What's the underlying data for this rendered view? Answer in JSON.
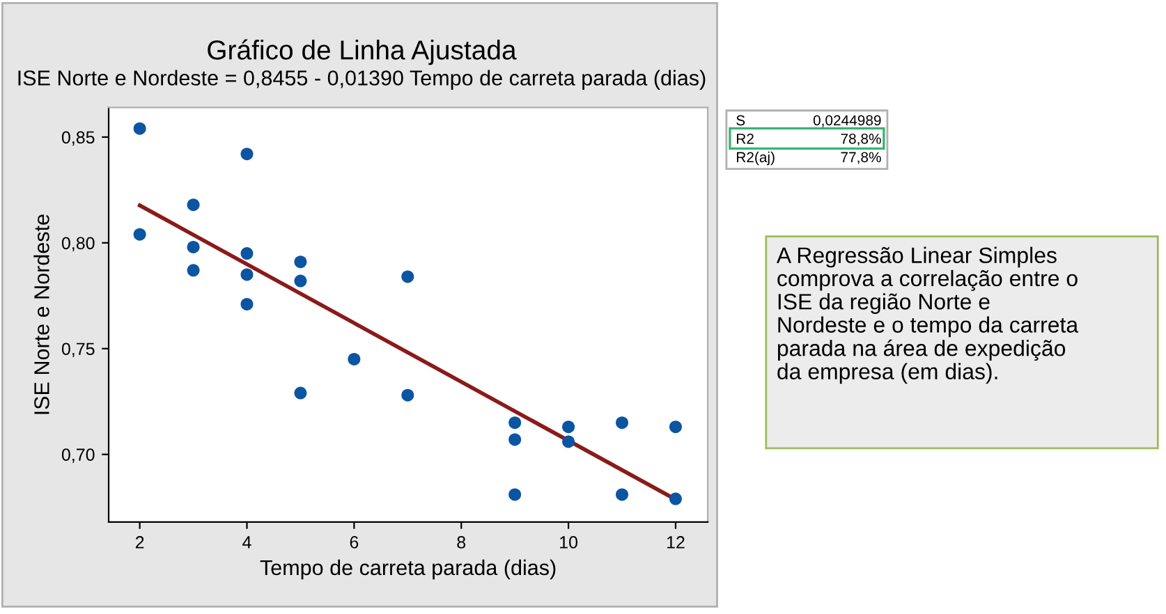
{
  "chart_data": {
    "type": "scatter",
    "title": "Gráfico de Linha Ajustada",
    "subtitle": "ISE Norte e Nordeste = 0,8455 - 0,01390 Tempo de carreta parada (dias)",
    "xlabel": "Tempo de carreta parada (dias)",
    "ylabel": "ISE Norte e Nordeste",
    "series": [
      {
        "color": "#0b55a3",
        "x": [
          2,
          2,
          3,
          3,
          3,
          4,
          4,
          4,
          4,
          5,
          5,
          5,
          6,
          7,
          7,
          9,
          9,
          9,
          10,
          10,
          11,
          11,
          12,
          12
        ],
        "values": [
          0.854,
          0.804,
          0.818,
          0.798,
          0.787,
          0.842,
          0.795,
          0.785,
          0.771,
          0.791,
          0.782,
          0.729,
          0.745,
          0.784,
          0.728,
          0.715,
          0.707,
          0.681,
          0.713,
          0.706,
          0.715,
          0.681,
          0.713,
          0.679
        ]
      },
      {
        "type": "line",
        "marker": "none",
        "color": "#8b1a1a",
        "x": [
          2,
          12
        ],
        "values": [
          0.8177,
          0.6787
        ]
      }
    ],
    "xlim": [
      1.42,
      12.6
    ],
    "ylim": [
      0.668,
      0.864
    ],
    "xticks": [
      2,
      4,
      6,
      8,
      10,
      12
    ],
    "yticks": [
      {
        "value": 0.7,
        "label": "0,70"
      },
      {
        "value": 0.75,
        "label": "0,75"
      },
      {
        "value": 0.8,
        "label": "0,80"
      },
      {
        "value": 0.85,
        "label": "0,85"
      }
    ],
    "marker": "circle",
    "grid": false,
    "legend": false,
    "annotations": [
      "S",
      "0,0244989",
      "R2",
      "78,8%",
      "R2(aj)",
      "77,8%",
      "A Regressão Linear Simples\ncomprova a correlação entre o\nISE da região Norte e\nNordeste e o tempo da carreta\nparada na área de expedição\nda empresa (em dias)."
    ]
  }
}
